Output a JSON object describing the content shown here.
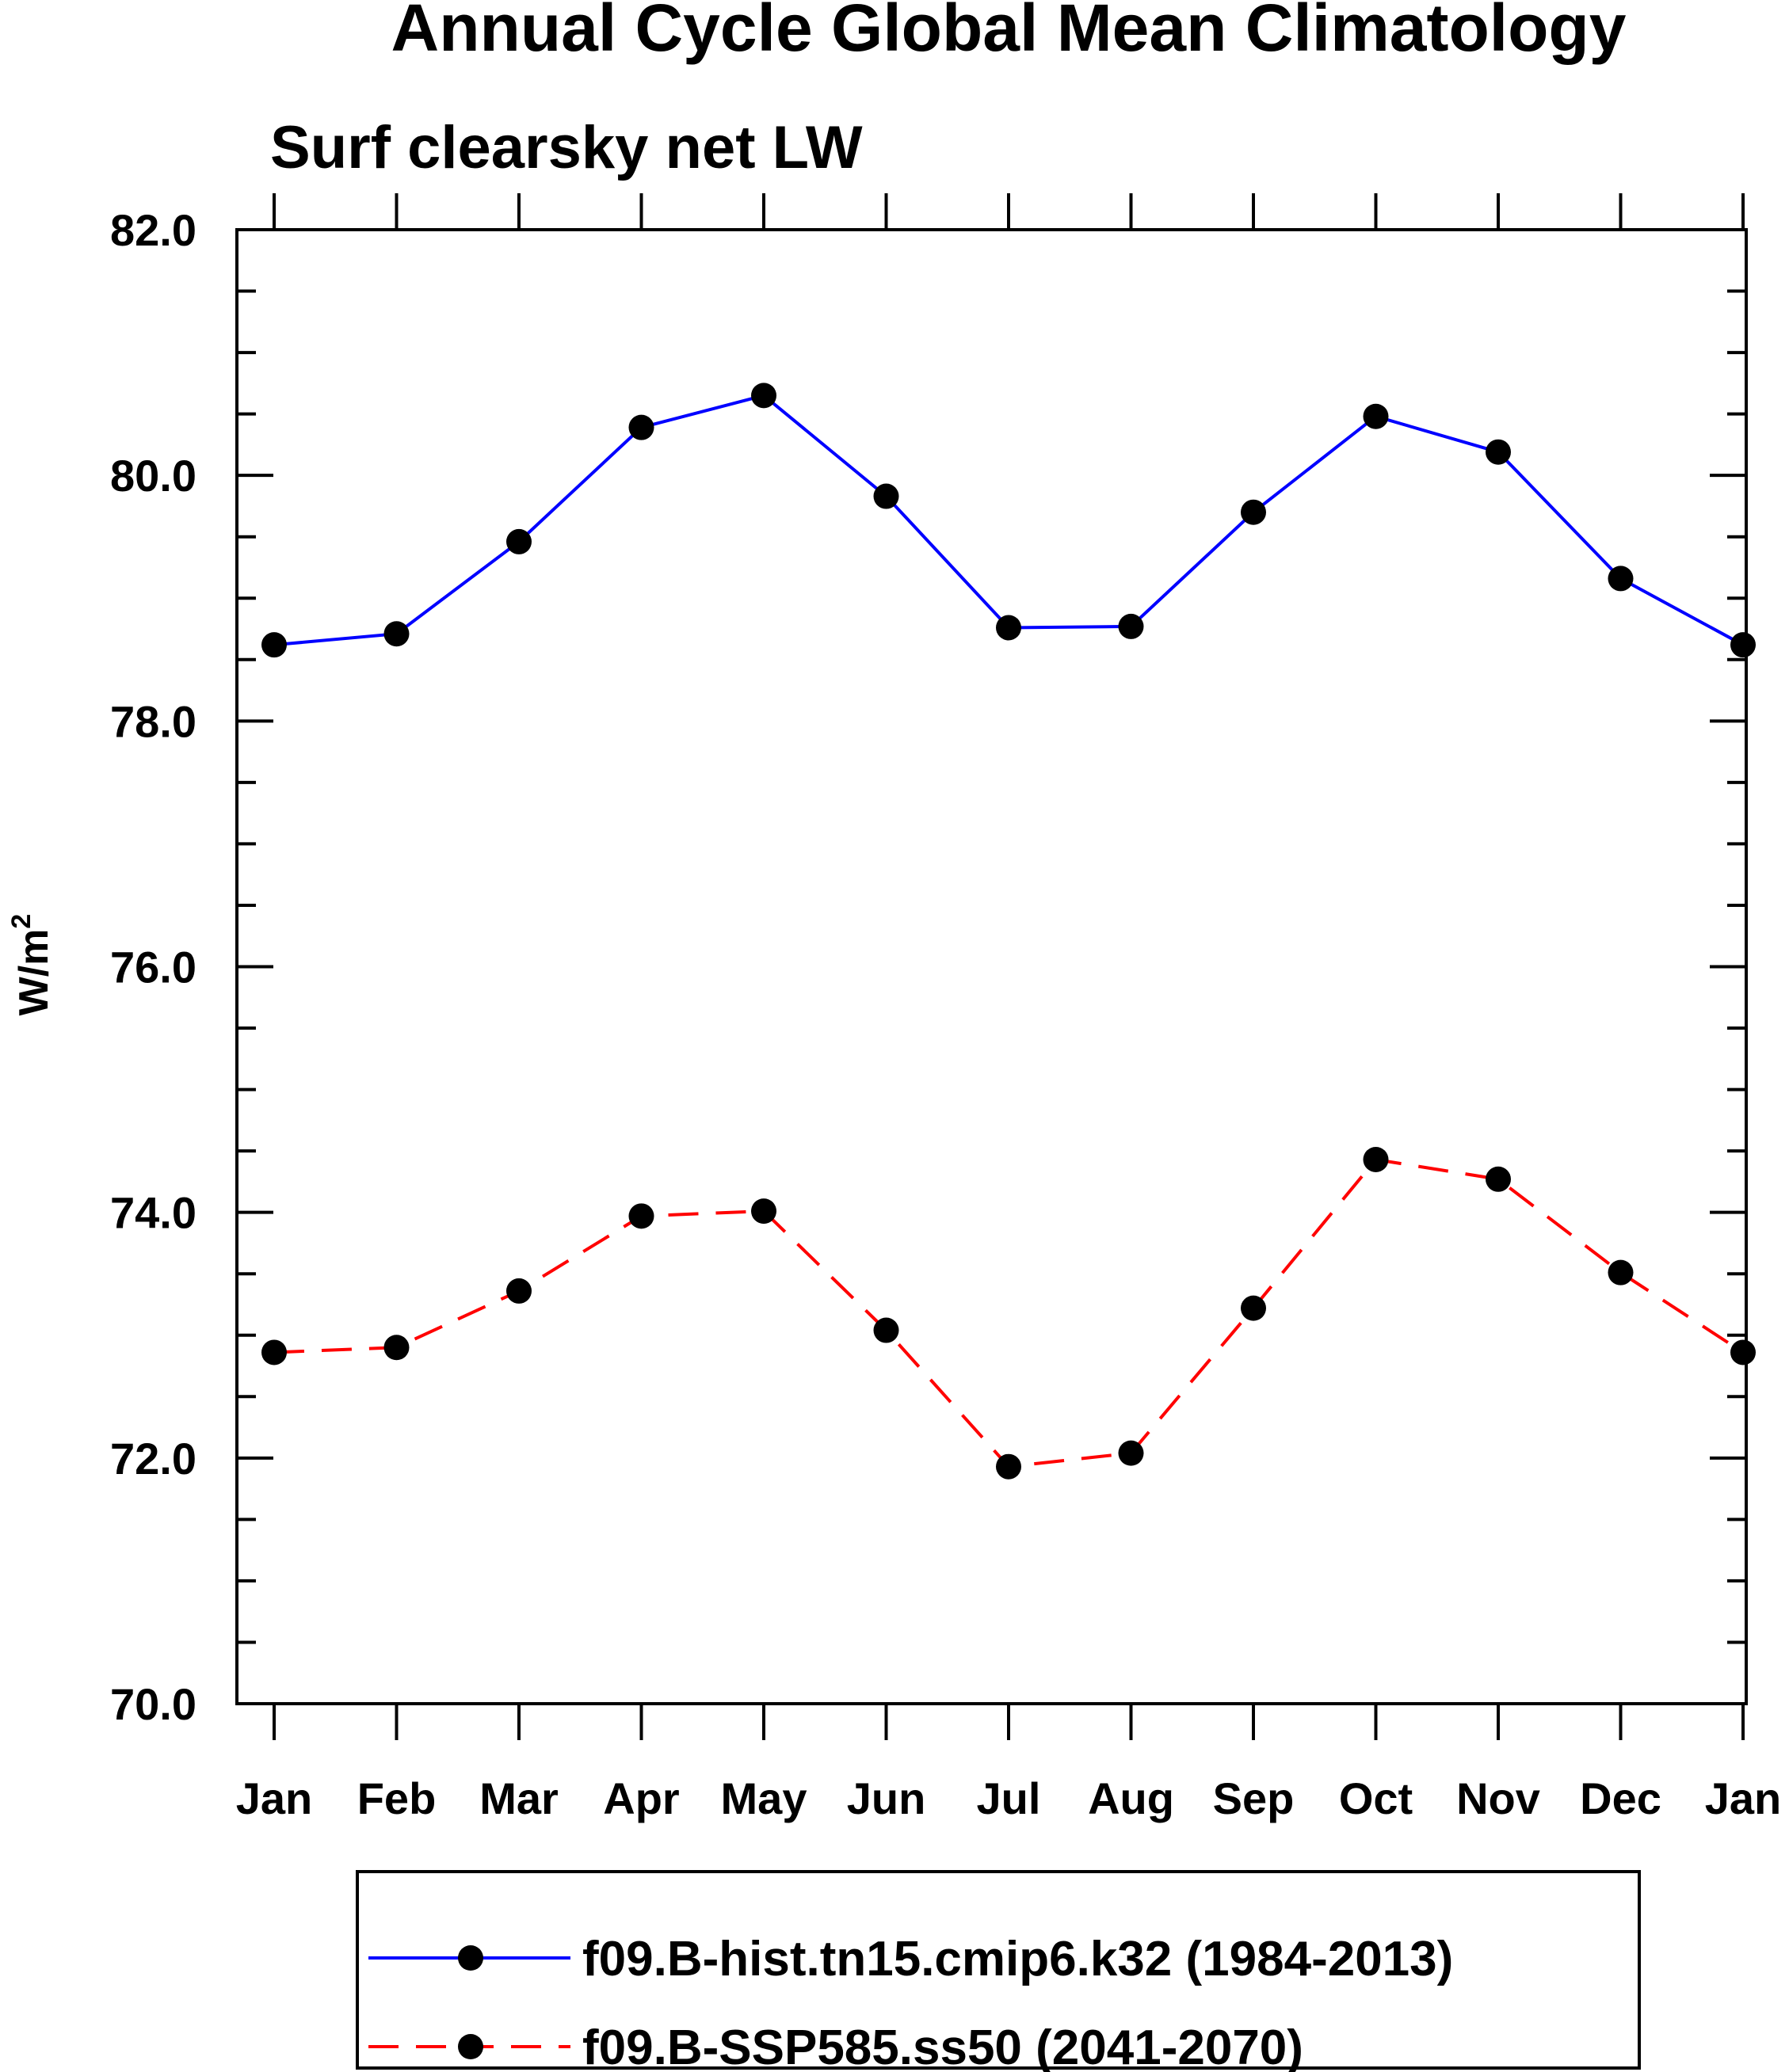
{
  "chart_data": {
    "type": "line",
    "title": "Annual Cycle Global Mean Climatology",
    "subtitle": "Surf clearsky net LW",
    "ylabel": "W/m",
    "ylabel_superscript": "2",
    "xlabel": "",
    "categories": [
      "Jan",
      "Feb",
      "Mar",
      "Apr",
      "May",
      "Jun",
      "Jul",
      "Aug",
      "Sep",
      "Oct",
      "Nov",
      "Dec",
      "Jan"
    ],
    "ylim": [
      70.0,
      82.0
    ],
    "yticks": [
      "70.0",
      "72.0",
      "74.0",
      "76.0",
      "78.0",
      "80.0",
      "82.0"
    ],
    "grid": false,
    "legend_position": "bottom",
    "series": [
      {
        "name": "f09.B-hist.tn15.cmip6.k32 (1984-2013)",
        "color": "#0000ff",
        "dash": "solid",
        "marker": "filled-circle",
        "values": [
          78.62,
          78.71,
          79.46,
          80.39,
          80.65,
          79.83,
          78.76,
          78.77,
          79.7,
          80.48,
          80.19,
          79.16,
          78.62
        ]
      },
      {
        "name": "f09.B-SSP585.ss50 (2041-2070)",
        "color": "#ff0000",
        "dash": "dashed",
        "marker": "filled-circle",
        "values": [
          72.86,
          72.9,
          73.36,
          73.97,
          74.01,
          73.04,
          71.93,
          72.04,
          73.22,
          74.43,
          74.27,
          73.51,
          72.86
        ]
      }
    ]
  }
}
